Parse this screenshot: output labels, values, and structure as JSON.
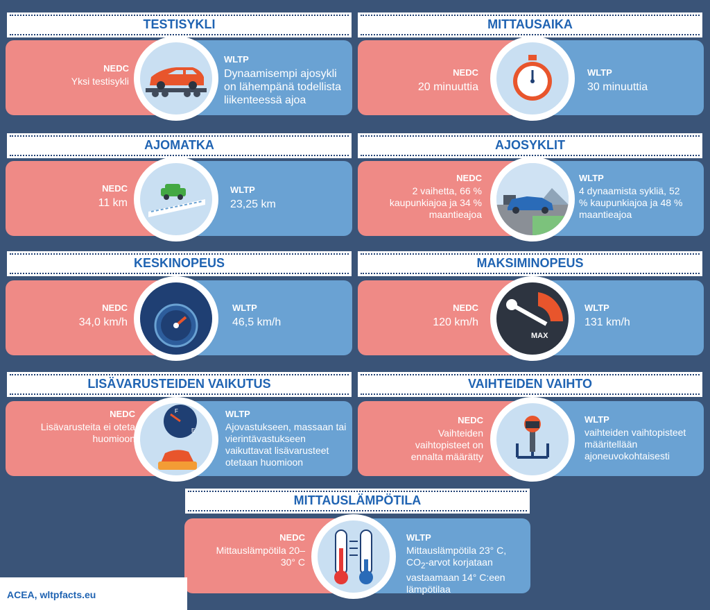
{
  "labels": {
    "nedc": "NEDC",
    "wltp": "WLTP"
  },
  "panels": {
    "testisykli": {
      "title": "TESTISYKLI",
      "nedc": "Yksi testisykli",
      "wltp": "Dynaamisempi ajosykli on lähempänä todellista liikenteessä ajoa"
    },
    "mittausaika": {
      "title": "MITTAUSAIKA",
      "nedc": "20 minuuttia",
      "wltp": "30 minuuttia"
    },
    "ajomatka": {
      "title": "AJOMATKA",
      "nedc": "11 km",
      "wltp": "23,25 km"
    },
    "ajosyklit": {
      "title": "AJOSYKLIT",
      "nedc": "2 vaihetta, 66 % kaupunkiajoa ja 34 % maantieajoa",
      "wltp": "4 dynaamista sykliä, 52 % kaupunkiajoa ja 48 % maantieajoa"
    },
    "keskinopeus": {
      "title": "KESKINOPEUS",
      "nedc": "34,0 km/h",
      "wltp": "46,5 km/h"
    },
    "maksiminopeus": {
      "title": "MAKSIMINOPEUS",
      "nedc": "120 km/h",
      "wltp": "131 km/h",
      "icon_text": "MAX"
    },
    "lisavarusteet": {
      "title": "LISÄVARUSTEIDEN VAIKUTUS",
      "nedc": "Lisävarusteita ei oteta huomioon",
      "wltp": "Ajovastukseen, massaan tai vierintävastukseen vaikuttavat lisävarusteet otetaan huomioon",
      "icon_f": "F",
      "icon_e": "E"
    },
    "vaihteet": {
      "title": "VAIHTEIDEN VAIHTO",
      "nedc": "Vaihteiden vaihtopisteet on ennalta määrätty",
      "wltp": "vaihteiden vaihtopisteet määritellään ajoneuvokohtaisesti"
    },
    "lampotila": {
      "title": "MITTAUSLÄMPÖTILA",
      "nedc": "Mittauslämpötila 20–30° C",
      "wltp_line1": "Mittauslämpötila 23° C,",
      "wltp_co": "CO",
      "wltp_sub": "2",
      "wltp_line2": "-arvot korjataan vastaamaan 14° C:een lämpötilaa"
    }
  },
  "footer": "ACEA, wltpfacts.eu",
  "colors": {
    "nedc": "#ef8a86",
    "wltp": "#6aa2d3",
    "title": "#1f63b2",
    "background": "#3a5478"
  },
  "icons": [
    "car-on-rollers-icon",
    "stopwatch-icon",
    "road-distance-icon",
    "car-landscape-icon",
    "speedometer-icon",
    "max-speed-gauge-icon",
    "fuel-gauge-car-icon",
    "gear-shift-icon",
    "thermometers-icon"
  ]
}
